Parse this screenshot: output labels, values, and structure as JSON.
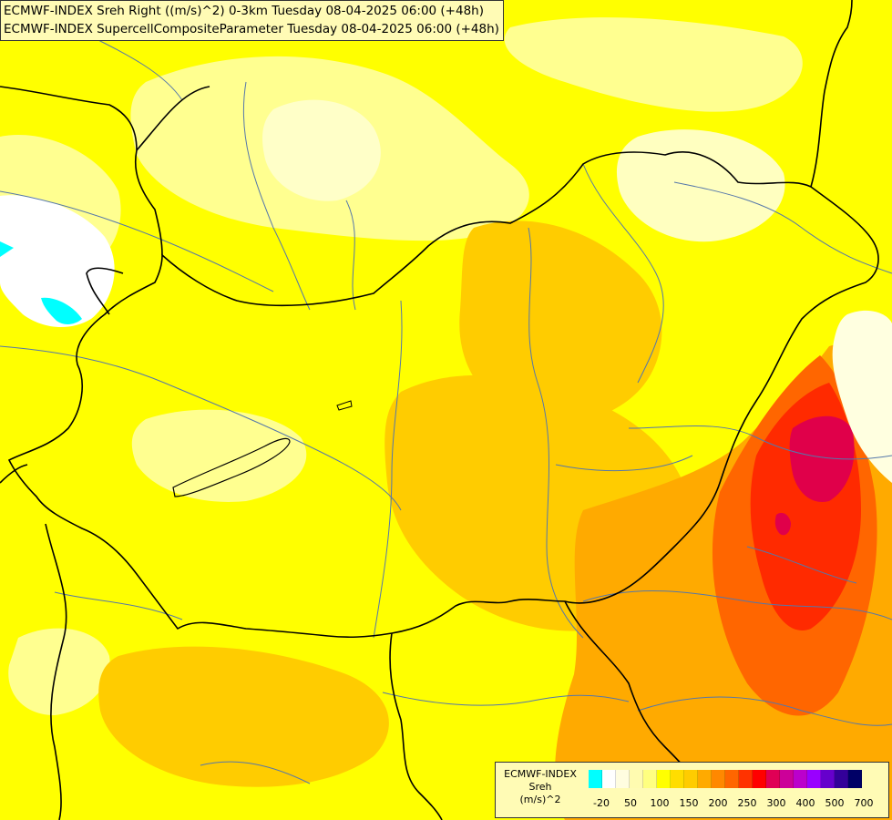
{
  "header": {
    "line1": "ECMWF-INDEX Sreh Right ((m/s)^2) 0-3km Tuesday 08-04-2025 06:00 (+48h)",
    "line2": "ECMWF-INDEX SupercellCompositeParameter Tuesday 08-04-2025 06:00 (+48h)"
  },
  "legend": {
    "title1": "ECMWF-INDEX",
    "title2": "Sreh",
    "title3": "(m/s)^2",
    "colors": [
      "#00ffff",
      "#ffffff",
      "#fffde0",
      "#fffbb0",
      "#ffff80",
      "#ffff00",
      "#ffdd00",
      "#ffcc00",
      "#ffaa00",
      "#ff8800",
      "#ff6600",
      "#ff3300",
      "#ff0000",
      "#e00055",
      "#cc0099",
      "#bb00cc",
      "#9900ff",
      "#6600cc",
      "#330099",
      "#000066"
    ],
    "ticks": [
      "-20",
      "50",
      "100",
      "150",
      "200",
      "250",
      "300",
      "400",
      "500",
      "700"
    ]
  },
  "map": {
    "background": "#ffff00",
    "rivers_color": "#5577aa",
    "border_color": "#000000",
    "regions": [
      {
        "name": "pale-north",
        "color": "#ffff90"
      },
      {
        "name": "pale-core-north",
        "color": "#ffffc8"
      },
      {
        "name": "pale-northeast",
        "color": "#ffffc0"
      },
      {
        "name": "white-west",
        "color": "#ffffff"
      },
      {
        "name": "cyan-west",
        "color": "#00ffff"
      },
      {
        "name": "orange-central",
        "color": "#ffcc00"
      },
      {
        "name": "orange-east",
        "color": "#ffaa00"
      },
      {
        "name": "red-orange-east",
        "color": "#ff6600"
      },
      {
        "name": "red-east",
        "color": "#ff2a00"
      },
      {
        "name": "crimson-core",
        "color": "#e0004a"
      },
      {
        "name": "white-east",
        "color": "#ffffe0"
      }
    ]
  }
}
